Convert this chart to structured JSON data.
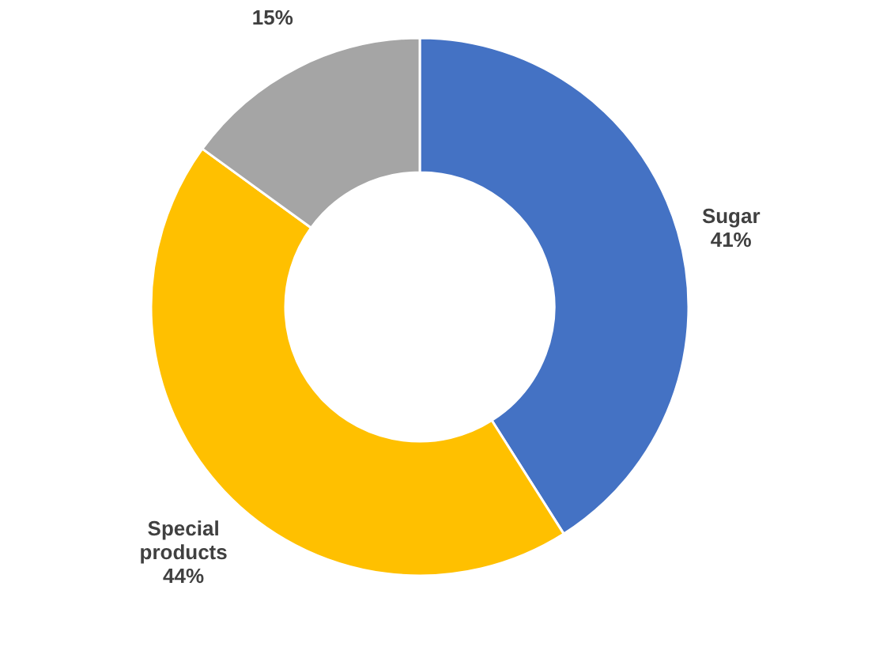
{
  "chart_data": {
    "type": "donut",
    "categories": [
      "Sugar",
      "Special products",
      null
    ],
    "values": [
      41,
      44,
      15
    ],
    "colors": [
      "#4472c4",
      "#ffc000",
      "#a5a5a5"
    ],
    "value_labels": [
      "41%",
      "44%",
      "15%"
    ],
    "legend": false
  }
}
